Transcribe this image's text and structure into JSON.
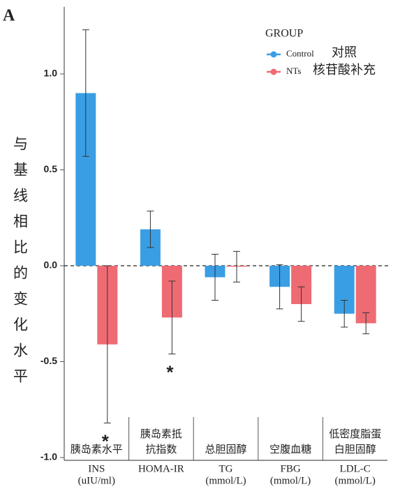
{
  "chart_data": {
    "type": "bar",
    "panel_label": "A",
    "y_label": "与基线相比的变化水平",
    "categories": [
      "INS",
      "HOMA-IR",
      "TG",
      "FBG",
      "LDL-C"
    ],
    "category_units": [
      "(uIU/ml)",
      null,
      "(mmol/L)",
      "(mmol/L)",
      "(mmol/L)"
    ],
    "category_labels_cn": [
      [
        "胰岛素水平"
      ],
      [
        "胰岛素抵",
        "抗指数"
      ],
      [
        "总胆固醇"
      ],
      [
        "空腹血糖"
      ],
      [
        "低密度脂蛋",
        "白胆固醇"
      ]
    ],
    "legend_title": "GROUP",
    "legend_position": "top-right",
    "series": [
      {
        "name": "Control",
        "name_cn": "对照",
        "color": "#3a9ee4",
        "values": [
          0.9,
          0.19,
          -0.06,
          -0.11,
          -0.25
        ],
        "errors": [
          0.33,
          0.095,
          0.12,
          0.115,
          0.07
        ],
        "significance": [
          null,
          null,
          null,
          null,
          null
        ]
      },
      {
        "name": "NTs",
        "name_cn": "核苷酸补充",
        "color": "#ef6b73",
        "values": [
          -0.41,
          -0.27,
          -0.005,
          -0.2,
          -0.3
        ],
        "errors": [
          0.41,
          0.19,
          0.08,
          0.09,
          0.055
        ],
        "significance": [
          "*",
          "*",
          null,
          null,
          null
        ]
      }
    ],
    "ylim": [
      -1,
      1.35
    ],
    "yticks": [
      {
        "value": -1,
        "label": "-1.0"
      },
      -0.5,
      {
        "value": 0,
        "label": "0.0"
      },
      0.5,
      {
        "value": 1,
        "label": "1.0"
      }
    ],
    "zero_line": "dashed"
  }
}
